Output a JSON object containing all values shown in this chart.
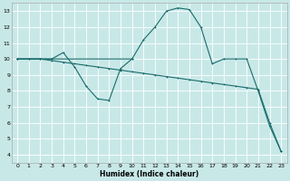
{
  "xlabel": "Humidex (Indice chaleur)",
  "background_color": "#c8e8e8",
  "grid_color": "#b0d0d0",
  "line_color": "#1a6b6b",
  "xlim": [
    -0.5,
    23.5
  ],
  "ylim": [
    3.5,
    13.5
  ],
  "xticks": [
    0,
    1,
    2,
    3,
    4,
    5,
    6,
    7,
    8,
    9,
    10,
    11,
    12,
    13,
    14,
    15,
    16,
    17,
    18,
    19,
    20,
    21,
    22,
    23
  ],
  "yticks": [
    4,
    5,
    6,
    7,
    8,
    9,
    10,
    11,
    12,
    13
  ],
  "line1_x": [
    0,
    1,
    2,
    3,
    4,
    5,
    6,
    7,
    8,
    9,
    10
  ],
  "line1_y": [
    10,
    10,
    10,
    10,
    10.4,
    9.5,
    8.3,
    7.5,
    7.4,
    9.4,
    10.0
  ],
  "line2_x": [
    0,
    10,
    11,
    12,
    13,
    14,
    15,
    16,
    17,
    18,
    19,
    20,
    21,
    22,
    23
  ],
  "line2_y": [
    10,
    10,
    11.2,
    12.0,
    13.0,
    13.2,
    13.1,
    12.0,
    9.7,
    10.0,
    10.0,
    10.0,
    8.0,
    5.8,
    4.2
  ],
  "line3_x": [
    0,
    1,
    2,
    3,
    4,
    5,
    6,
    7,
    8,
    9,
    10,
    11,
    12,
    13,
    14,
    15,
    16,
    17,
    18,
    19,
    20,
    21,
    22,
    23
  ],
  "line3_y": [
    10,
    10,
    10,
    9.9,
    9.8,
    9.7,
    9.6,
    9.5,
    9.4,
    9.3,
    9.2,
    9.1,
    9.0,
    8.9,
    8.8,
    8.7,
    8.6,
    8.5,
    8.4,
    8.3,
    8.2,
    8.1,
    6.0,
    4.2
  ]
}
